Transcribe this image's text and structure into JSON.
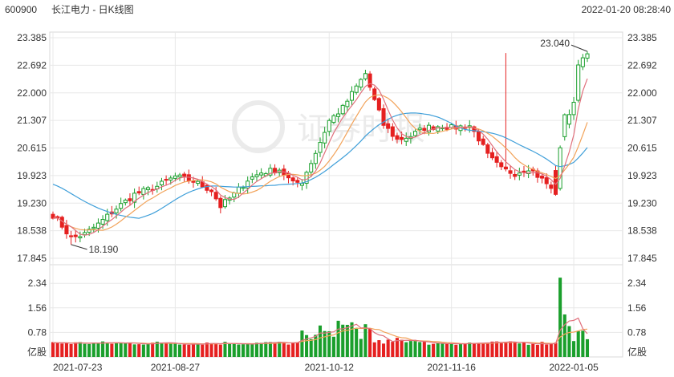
{
  "header": {
    "code": "600900",
    "title": "长江电力 - 日K线图",
    "datetime": "2022-01-20 08:28:40"
  },
  "watermark": "证券时报",
  "colors": {
    "up": "#e52020",
    "down": "#1a9f2c",
    "ma5": "#e0707c",
    "ma10": "#f2a35a",
    "ma20": "#3f9fd9",
    "grid": "#e8e8e8"
  },
  "chart_data": [
    {
      "type": "candlestick",
      "title": "长江电力 - 日K线图",
      "price_ticks": [
        "23.385",
        "22.692",
        "22.000",
        "21.307",
        "20.615",
        "19.923",
        "19.230",
        "18.538",
        "17.845"
      ],
      "ylim": [
        17.845,
        23.385
      ],
      "date_labels": [
        "2021-07-23",
        "2021-08-27",
        "2021-10-12",
        "2021-11-16",
        "2022-01-05"
      ],
      "annotations": [
        {
          "label": "23.040",
          "value": 23.04,
          "type": "max"
        },
        {
          "label": "18.190",
          "value": 18.19,
          "type": "min"
        }
      ],
      "series_lines": [
        "ma5",
        "ma10",
        "ma20"
      ],
      "sessions": 119,
      "close_anchors": [
        [
          0,
          18.93
        ],
        [
          2,
          18.66
        ],
        [
          4,
          18.35
        ],
        [
          7,
          18.45
        ],
        [
          10,
          18.7
        ],
        [
          14,
          19.1
        ],
        [
          18,
          19.45
        ],
        [
          23,
          19.65
        ],
        [
          27,
          19.9
        ],
        [
          31,
          19.78
        ],
        [
          35,
          19.55
        ],
        [
          37,
          19.15
        ],
        [
          40,
          19.45
        ],
        [
          43,
          19.82
        ],
        [
          46,
          20.0
        ],
        [
          50,
          20.08
        ],
        [
          53,
          19.72
        ],
        [
          55,
          19.78
        ],
        [
          58,
          20.5
        ],
        [
          61,
          21.3
        ],
        [
          64,
          21.62
        ],
        [
          67,
          22.15
        ],
        [
          69,
          22.48
        ],
        [
          71,
          21.8
        ],
        [
          73,
          21.2
        ],
        [
          76,
          20.82
        ],
        [
          79,
          20.92
        ],
        [
          82,
          21.12
        ],
        [
          86,
          21.18
        ],
        [
          88,
          21.12
        ],
        [
          92,
          21.18
        ],
        [
          94,
          20.85
        ],
        [
          96,
          20.42
        ],
        [
          99,
          20.08
        ],
        [
          102,
          19.98
        ],
        [
          105,
          20.12
        ],
        [
          107,
          19.92
        ],
        [
          109,
          19.72
        ],
        [
          111,
          19.42
        ],
        [
          113,
          21.25
        ],
        [
          115,
          21.7
        ]
      ]
    },
    {
      "type": "bar",
      "title": "成交量",
      "unit": "亿股",
      "ticks": [
        "2.34",
        "1.56",
        "0.78"
      ],
      "ylim": [
        0,
        2.6
      ],
      "series_lines": [
        "ma5",
        "ma10"
      ],
      "spike": {
        "value": 2.52,
        "next": 1.35
      }
    }
  ]
}
